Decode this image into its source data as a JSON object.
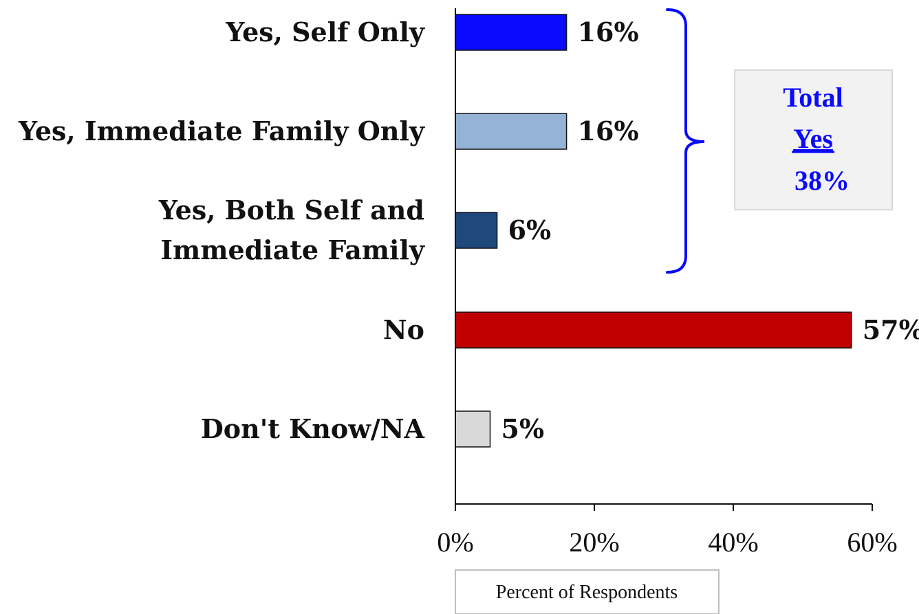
{
  "chart_data": {
    "type": "bar",
    "orientation": "horizontal",
    "categories": [
      [
        "Yes, Self Only"
      ],
      [
        "Yes, Immediate Family Only"
      ],
      [
        "Yes, Both Self and",
        "Immediate Family"
      ],
      [
        "No"
      ],
      [
        "Don't Know/NA"
      ]
    ],
    "values": [
      16,
      16,
      6,
      57,
      5
    ],
    "value_labels": [
      "16%",
      "16%",
      "6%",
      "57%",
      "5%"
    ],
    "colors": [
      "#0a0aff",
      "#95b3d7",
      "#1f497d",
      "#c00000",
      "#d9d9d9"
    ],
    "xlim": [
      0,
      60
    ],
    "xticks": [
      0,
      20,
      40,
      60
    ],
    "xtick_labels": [
      "0%",
      "20%",
      "40%",
      "60%"
    ],
    "xlabel": "Percent of Respondents",
    "grid": false,
    "legend": "none",
    "annotation": {
      "bracket_spans": [
        0,
        2
      ],
      "lines": [
        "Total",
        "Yes",
        "38%"
      ],
      "color": "#0a0aff",
      "box_fill": "#f2f2f2"
    }
  }
}
